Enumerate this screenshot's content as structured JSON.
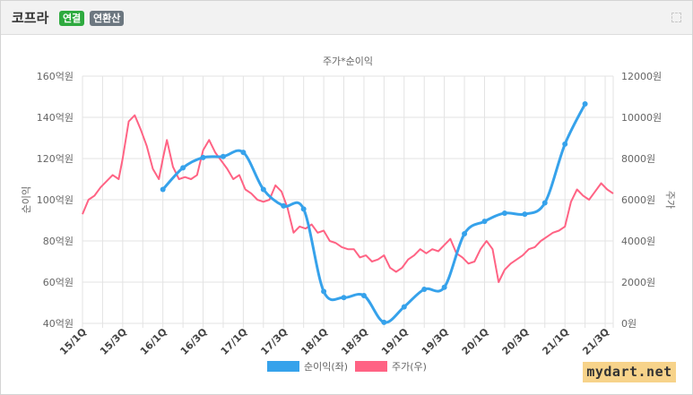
{
  "header": {
    "company": "코프라",
    "badge_consolidated": "연결",
    "badge_annualized": "연환산",
    "badge_consolidated_color": "#2eaa3f",
    "badge_annualized_color": "#6c7780",
    "expand_icon": "expand-icon"
  },
  "watermark": {
    "text": "mydart.net",
    "background": "#f7d38a"
  },
  "chart_data": {
    "type": "line",
    "title": "주가*순이익",
    "ylabel_left": "순이익",
    "ylabel_right": "주가",
    "x_tick_labels": [
      "15/1Q",
      "15/3Q",
      "16/1Q",
      "16/3Q",
      "17/1Q",
      "17/3Q",
      "18/1Q",
      "18/3Q",
      "19/1Q",
      "19/3Q",
      "20/1Q",
      "20/3Q",
      "21/1Q",
      "21/3Q"
    ],
    "x_range": [
      0,
      26.4
    ],
    "left_axis": {
      "ticks": [
        "40억원",
        "60억원",
        "80억원",
        "100억원",
        "120억원",
        "140억원",
        "160억원"
      ],
      "range": [
        40,
        160
      ]
    },
    "right_axis": {
      "ticks": [
        "0원",
        "2000원",
        "4000원",
        "6000원",
        "8000원",
        "10000원",
        "12000원"
      ],
      "range": [
        0,
        12000
      ]
    },
    "grid": true,
    "legend_position": "bottom",
    "series": [
      {
        "name": "순이익(좌)",
        "axis": "left",
        "color": "#36a2eb",
        "points": [
          [
            4,
            105
          ],
          [
            5,
            115.5
          ],
          [
            6,
            120.5
          ],
          [
            7,
            121
          ],
          [
            8,
            123
          ],
          [
            9,
            105
          ],
          [
            10,
            97
          ],
          [
            11,
            95.5
          ],
          [
            12,
            55.5
          ],
          [
            13,
            52.5
          ],
          [
            14,
            53.5
          ],
          [
            15,
            40.5
          ],
          [
            16,
            48
          ],
          [
            17,
            56.5
          ],
          [
            18,
            57.5
          ],
          [
            19,
            83.5
          ],
          [
            20,
            89.5
          ],
          [
            21,
            93.5
          ],
          [
            22,
            93
          ],
          [
            23,
            98.5
          ],
          [
            24,
            127
          ],
          [
            25,
            146.5
          ]
        ]
      },
      {
        "name": "주가(우)",
        "axis": "right",
        "color": "#ff6384",
        "points": [
          [
            0,
            5300
          ],
          [
            0.3,
            6000
          ],
          [
            0.6,
            6200
          ],
          [
            0.9,
            6600
          ],
          [
            1.2,
            6900
          ],
          [
            1.5,
            7200
          ],
          [
            1.8,
            7000
          ],
          [
            2.0,
            8000
          ],
          [
            2.3,
            9800
          ],
          [
            2.6,
            10100
          ],
          [
            2.9,
            9400
          ],
          [
            3.2,
            8600
          ],
          [
            3.5,
            7500
          ],
          [
            3.8,
            7000
          ],
          [
            4.0,
            8000
          ],
          [
            4.2,
            8900
          ],
          [
            4.5,
            7600
          ],
          [
            4.8,
            7000
          ],
          [
            5.1,
            7100
          ],
          [
            5.4,
            7000
          ],
          [
            5.7,
            7200
          ],
          [
            6.0,
            8400
          ],
          [
            6.3,
            8900
          ],
          [
            6.6,
            8300
          ],
          [
            6.9,
            7900
          ],
          [
            7.2,
            7500
          ],
          [
            7.5,
            7000
          ],
          [
            7.8,
            7200
          ],
          [
            8.1,
            6500
          ],
          [
            8.4,
            6300
          ],
          [
            8.7,
            6000
          ],
          [
            9.0,
            5900
          ],
          [
            9.3,
            6000
          ],
          [
            9.6,
            6700
          ],
          [
            9.9,
            6400
          ],
          [
            10.2,
            5600
          ],
          [
            10.5,
            4400
          ],
          [
            10.8,
            4700
          ],
          [
            11.1,
            4600
          ],
          [
            11.4,
            4800
          ],
          [
            11.7,
            4400
          ],
          [
            12.0,
            4500
          ],
          [
            12.3,
            4000
          ],
          [
            12.6,
            3900
          ],
          [
            12.9,
            3700
          ],
          [
            13.2,
            3600
          ],
          [
            13.5,
            3600
          ],
          [
            13.8,
            3200
          ],
          [
            14.1,
            3300
          ],
          [
            14.4,
            3000
          ],
          [
            14.7,
            3100
          ],
          [
            15.0,
            3300
          ],
          [
            15.3,
            2700
          ],
          [
            15.6,
            2500
          ],
          [
            15.9,
            2700
          ],
          [
            16.2,
            3100
          ],
          [
            16.5,
            3300
          ],
          [
            16.8,
            3600
          ],
          [
            17.1,
            3400
          ],
          [
            17.4,
            3600
          ],
          [
            17.7,
            3500
          ],
          [
            18.0,
            3800
          ],
          [
            18.3,
            4100
          ],
          [
            18.6,
            3400
          ],
          [
            18.9,
            3200
          ],
          [
            19.2,
            2900
          ],
          [
            19.5,
            3000
          ],
          [
            19.8,
            3600
          ],
          [
            20.1,
            4000
          ],
          [
            20.4,
            3600
          ],
          [
            20.7,
            2000
          ],
          [
            21.0,
            2600
          ],
          [
            21.3,
            2900
          ],
          [
            21.6,
            3100
          ],
          [
            21.9,
            3300
          ],
          [
            22.2,
            3600
          ],
          [
            22.5,
            3700
          ],
          [
            22.8,
            4000
          ],
          [
            23.1,
            4200
          ],
          [
            23.4,
            4400
          ],
          [
            23.7,
            4500
          ],
          [
            24.0,
            4700
          ],
          [
            24.3,
            5900
          ],
          [
            24.6,
            6500
          ],
          [
            24.9,
            6200
          ],
          [
            25.2,
            6000
          ],
          [
            25.5,
            6400
          ],
          [
            25.8,
            6800
          ],
          [
            26.1,
            6500
          ],
          [
            26.4,
            6300
          ]
        ]
      }
    ]
  }
}
